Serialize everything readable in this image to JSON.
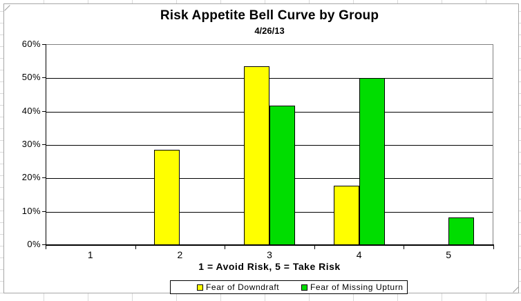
{
  "chart_data": {
    "type": "bar",
    "title": "Risk Appetite Bell Curve by Group",
    "subtitle": "4/26/13",
    "categories": [
      "1",
      "2",
      "3",
      "4",
      "5"
    ],
    "series": [
      {
        "name": "Fear of Downdraft",
        "color": "#FFFF00",
        "values": [
          0,
          28.6,
          53.5,
          17.8,
          0
        ]
      },
      {
        "name": "Fear of Missing Upturn",
        "color": "#00DD00",
        "values": [
          0,
          0,
          41.7,
          50,
          8.3
        ]
      }
    ],
    "xlabel": "1 = Avoid Risk, 5 = Take Risk",
    "ylabel": "",
    "ylim": [
      0,
      60
    ],
    "y_tick_step": 10,
    "y_tick_labels": [
      "0%",
      "10%",
      "20%",
      "30%",
      "40%",
      "50%",
      "60%"
    ],
    "grid": true,
    "legend_position": "bottom",
    "bar_border_color": "#000000"
  }
}
